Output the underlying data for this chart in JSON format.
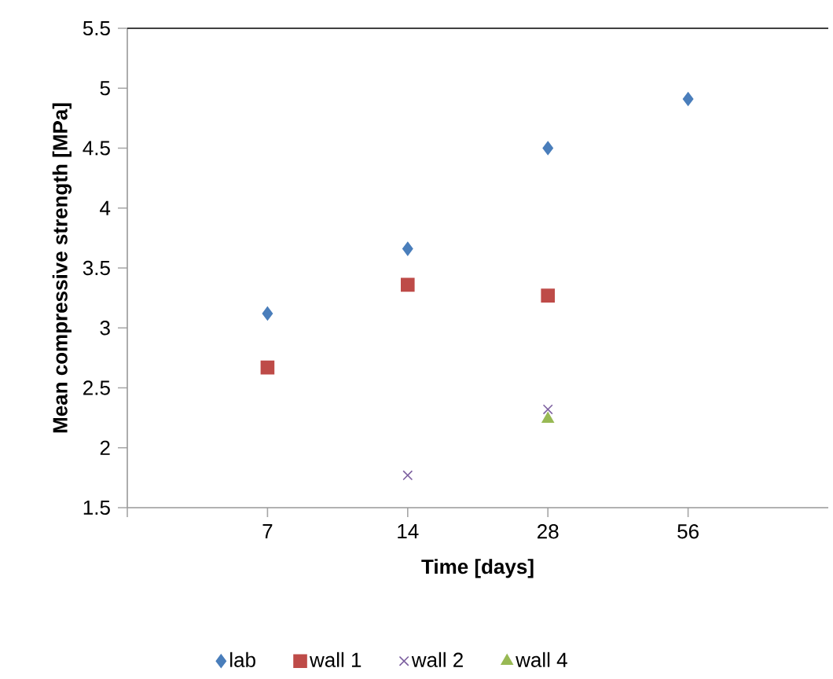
{
  "chart_data": {
    "type": "scatter",
    "xlabel": "Time [days]",
    "ylabel": "Mean compressive strength [MPa]",
    "categories": [
      "7",
      "14",
      "28",
      "56"
    ],
    "ylim": [
      1.5,
      5.5
    ],
    "yticks": [
      1.5,
      2,
      2.5,
      3,
      3.5,
      4,
      4.5,
      5,
      5.5
    ],
    "grid": false,
    "legend": "bottom",
    "series": [
      {
        "name": "lab",
        "color": "#4a7ebb",
        "marker": "diamond",
        "values": [
          3.12,
          3.66,
          4.5,
          4.91
        ]
      },
      {
        "name": "wall 1",
        "color": "#be4b48",
        "marker": "square",
        "values": [
          2.67,
          3.36,
          3.27,
          null
        ]
      },
      {
        "name": "wall 2",
        "color": "#7d60a0",
        "marker": "cross",
        "values": [
          null,
          1.77,
          2.32,
          null
        ]
      },
      {
        "name": "wall 4",
        "color": "#98b954",
        "marker": "triangle",
        "values": [
          null,
          null,
          2.24,
          null
        ]
      }
    ]
  }
}
